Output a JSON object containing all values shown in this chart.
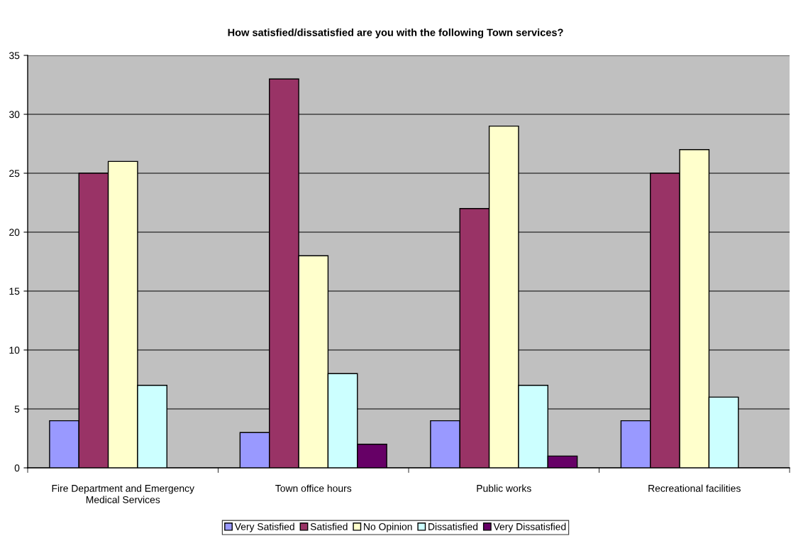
{
  "chart_data": {
    "type": "bar",
    "title": "How satisfied/dissatisfied are you with the following Town services?",
    "categories": [
      "Fire Department and Emergency\nMedical Services",
      "Town office hours",
      "Public works",
      "Recreational facilities"
    ],
    "series": [
      {
        "name": "Very Satisfied",
        "color": "#9999ff",
        "values": [
          4,
          3,
          4,
          4
        ]
      },
      {
        "name": "Satisfied",
        "color": "#993366",
        "values": [
          25,
          33,
          22,
          25
        ]
      },
      {
        "name": "No Opinion",
        "color": "#ffffcc",
        "values": [
          26,
          18,
          29,
          27
        ]
      },
      {
        "name": "Dissatisfied",
        "color": "#ccffff",
        "values": [
          7,
          8,
          7,
          6
        ]
      },
      {
        "name": "Very Dissatisfied",
        "color": "#660066",
        "values": [
          null,
          2,
          1,
          null
        ]
      }
    ],
    "ylim": [
      0,
      35
    ],
    "yticks": [
      0,
      5,
      10,
      15,
      20,
      25,
      30,
      35
    ],
    "grid": "y",
    "legend": "bottom"
  }
}
